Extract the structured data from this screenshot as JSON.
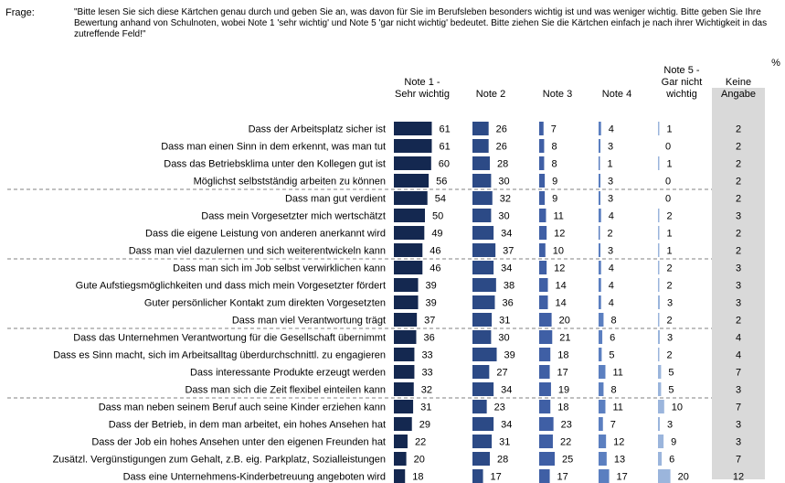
{
  "question": {
    "label": "Frage:",
    "text": "\"Bitte lesen Sie sich diese Kärtchen genau durch und geben Sie an, was davon für Sie im Berufsleben besonders wichtig ist und was weniger wichtig. Bitte geben Sie Ihre Bewertung anhand von Schulnoten, wobei Note 1 'sehr wichtig' und Note 5 'gar nicht wichtig' bedeutet. Bitte ziehen Sie die Kärtchen einfach je nach ihrer Wichtigkeit in das zutreffende Feld!\""
  },
  "unit_label": "%",
  "colors": {
    "note1": "#142850",
    "note2": "#2c4a86",
    "note3": "#3f5fa5",
    "note4": "#5b7fc0",
    "note5": "#9bb5dc",
    "keine_bg": "#d9d9d9",
    "divider": "#808080"
  },
  "chart_data": {
    "type": "bar",
    "layout": "multi-column horizontal bars",
    "columns": [
      {
        "key": "note1",
        "lines": [
          "Note 1 -",
          "Sehr wichtig"
        ]
      },
      {
        "key": "note2",
        "lines": [
          "Note 2"
        ]
      },
      {
        "key": "note3",
        "lines": [
          "Note 3"
        ]
      },
      {
        "key": "note4",
        "lines": [
          "Note 4"
        ]
      },
      {
        "key": "note5",
        "lines": [
          "Note 5 -",
          "Gar nicht",
          "wichtig"
        ]
      },
      {
        "key": "keine",
        "lines": [
          "Keine",
          "Angabe"
        ]
      }
    ],
    "categories": [
      "Dass der Arbeitsplatz sicher ist",
      "Dass man einen Sinn in dem erkennt, was man tut",
      "Dass das Betriebsklima unter den Kollegen gut ist",
      "Möglichst selbstständig arbeiten zu können",
      "Dass man gut verdient",
      "Dass mein Vorgesetzter mich wertschätzt",
      "Dass die eigene Leistung von anderen anerkannt wird",
      "Dass man viel dazulernen und sich weiterentwickeln kann",
      "Dass man sich im Job selbst verwirklichen kann",
      "Gute Aufstiegsmöglichkeiten und dass mich mein Vorgesetzter fördert",
      "Guter persönlicher Kontakt zum direkten Vorgesetzten",
      "Dass man viel Verantwortung trägt",
      "Dass das Unternehmen Verantwortung für die Gesellschaft übernimmt",
      "Dass es Sinn macht, sich im Arbeitsalltag überdurchschnittl. zu engagieren",
      "Dass interessante Produkte erzeugt werden",
      "Dass man sich die Zeit flexibel einteilen kann",
      "Dass man neben seinem Beruf auch seine Kinder erziehen kann",
      "Dass der Betrieb, in dem man arbeitet, ein hohes Ansehen hat",
      "Dass der Job ein hohes Ansehen unter den eigenen Freunden hat",
      "Zusätzl. Vergünstigungen zum Gehalt, z.B. eig. Parkplatz, Sozialleistungen",
      "Dass eine Unternehmens-Kinderbetreuung angeboten wird"
    ],
    "series": [
      {
        "name": "Note 1 - Sehr wichtig",
        "values": [
          61,
          61,
          60,
          56,
          54,
          50,
          49,
          46,
          46,
          39,
          39,
          37,
          36,
          33,
          33,
          32,
          31,
          29,
          22,
          20,
          18
        ]
      },
      {
        "name": "Note 2",
        "values": [
          26,
          26,
          28,
          30,
          32,
          30,
          34,
          37,
          34,
          38,
          36,
          31,
          30,
          39,
          27,
          34,
          23,
          34,
          31,
          28,
          17
        ]
      },
      {
        "name": "Note 3",
        "values": [
          7,
          8,
          8,
          9,
          9,
          11,
          12,
          10,
          12,
          14,
          14,
          20,
          21,
          18,
          17,
          19,
          18,
          23,
          22,
          25,
          17
        ]
      },
      {
        "name": "Note 4",
        "values": [
          4,
          3,
          1,
          3,
          3,
          4,
          2,
          3,
          4,
          4,
          4,
          8,
          6,
          5,
          11,
          8,
          11,
          7,
          12,
          13,
          17
        ]
      },
      {
        "name": "Note 5 - Gar nicht wichtig",
        "values": [
          1,
          0,
          1,
          0,
          0,
          2,
          1,
          1,
          2,
          2,
          3,
          2,
          3,
          2,
          5,
          5,
          10,
          3,
          9,
          6,
          20
        ]
      },
      {
        "name": "Keine Angabe",
        "values": [
          2,
          2,
          2,
          2,
          2,
          3,
          2,
          2,
          3,
          3,
          3,
          2,
          4,
          4,
          7,
          3,
          7,
          3,
          3,
          7,
          12
        ]
      }
    ],
    "group_breaks_after": [
      3,
      7,
      11,
      15
    ]
  }
}
